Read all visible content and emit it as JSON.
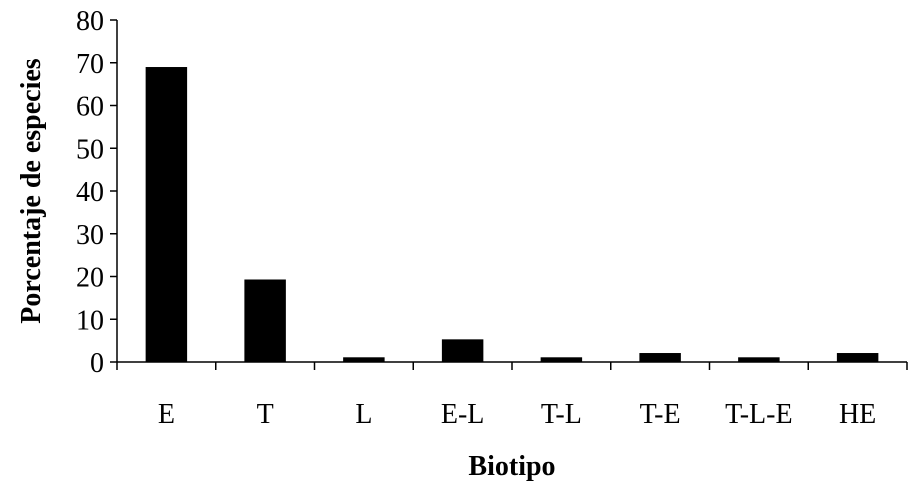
{
  "chart_data": {
    "type": "bar",
    "title": "",
    "xlabel": "Biotipo",
    "ylabel": "Porcentaje de especies",
    "categories": [
      "E",
      "T",
      "L",
      "E-L",
      "T-L",
      "T-E",
      "T-L-E",
      "HE"
    ],
    "values": [
      69,
      19.3,
      1.1,
      5.3,
      1.1,
      2.1,
      1.1,
      2.1
    ],
    "ylim": [
      0,
      80
    ],
    "yticks": [
      0,
      10,
      20,
      30,
      40,
      50,
      60,
      70,
      80
    ],
    "grid": false,
    "legend": "none",
    "bar_color": "#000000"
  }
}
